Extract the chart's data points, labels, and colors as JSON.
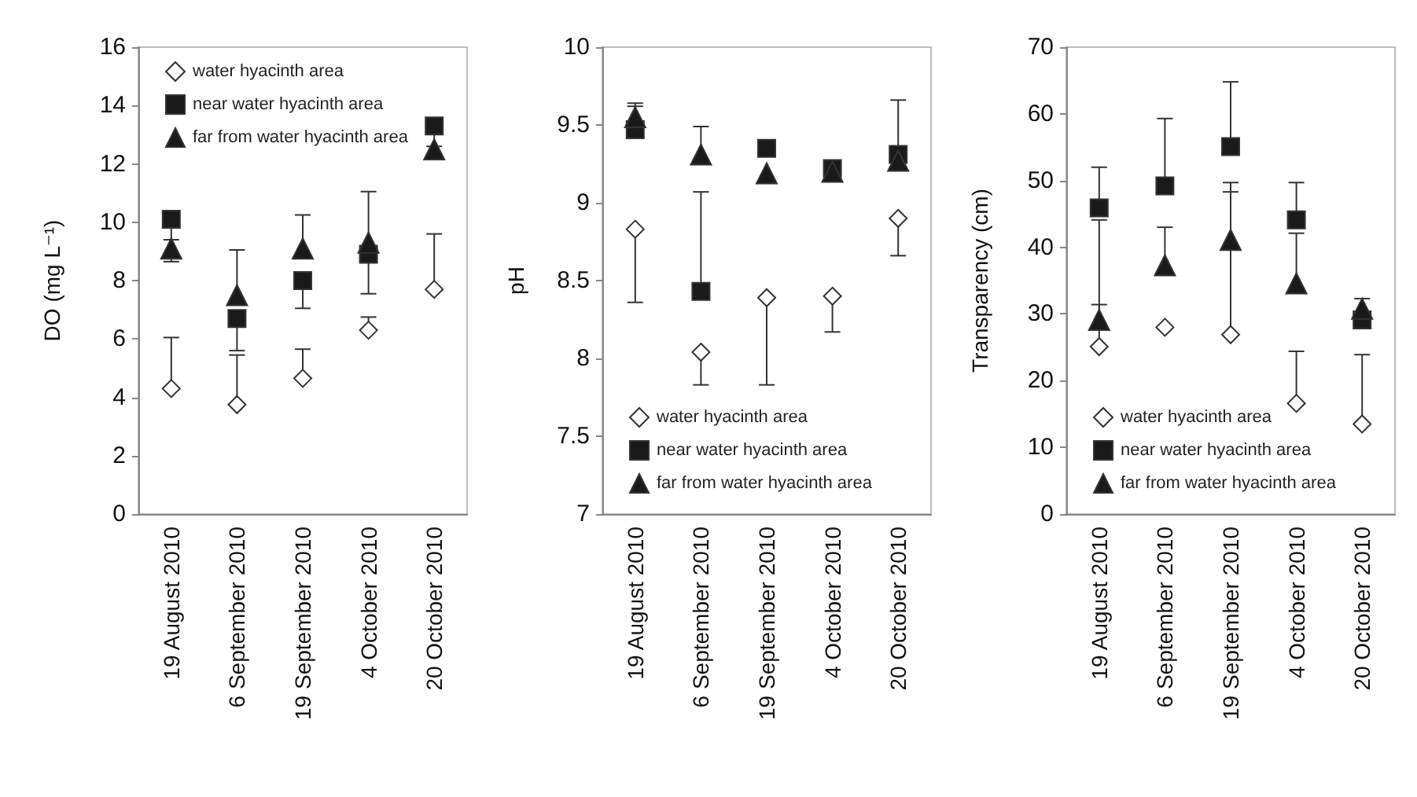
{
  "chart_data": [
    {
      "type": "scatter",
      "ylabel": "DO (mg L⁻¹)",
      "categories": [
        "19 August 2010",
        "6 September 2010",
        "19 September 2010",
        "4 October 2010",
        "20 October 2010"
      ],
      "ylim": [
        0,
        16
      ],
      "yticks": [
        0,
        2,
        4,
        6,
        8,
        10,
        12,
        14,
        16
      ],
      "grid": false,
      "legend": "top left",
      "series": [
        {
          "name": "water hyacinth area",
          "color": "#ffffff",
          "marker": "diamond",
          "values": [
            4.3,
            3.75,
            4.65,
            6.3,
            7.7
          ],
          "errors": [
            [
              4.3,
              6.05
            ],
            [
              3.75,
              5.45
            ],
            [
              4.65,
              5.65
            ],
            [
              6.3,
              6.75
            ],
            [
              7.7,
              9.6
            ]
          ]
        },
        {
          "name": "near water hyacinth area",
          "color": "#1a1a1a",
          "marker": "square",
          "values": [
            10.1,
            6.7,
            8.0,
            8.9,
            13.3
          ],
          "errors": [
            [
              9.4,
              10.1
            ],
            [
              5.6,
              6.7
            ],
            [
              7.05,
              8.0
            ],
            [
              7.55,
              8.9
            ],
            [
              12.6,
              13.3
            ]
          ]
        },
        {
          "name": "far from water hyacinth area",
          "color": "#1a1a1a",
          "marker": "triangle",
          "values": [
            9.1,
            7.5,
            9.1,
            9.3,
            12.5
          ],
          "errors": [
            [
              8.65,
              9.1
            ],
            [
              7.5,
              9.05
            ],
            [
              9.1,
              10.25
            ],
            [
              9.3,
              11.05
            ],
            null
          ]
        }
      ]
    },
    {
      "type": "scatter",
      "ylabel": "pH",
      "categories": [
        "19 August 2010",
        "6 September 2010",
        "19 September 2010",
        "4 October 2010",
        "20 October 2010"
      ],
      "ylim": [
        7,
        10
      ],
      "yticks": [
        7,
        7.5,
        8,
        8.5,
        9,
        9.5,
        10
      ],
      "grid": false,
      "legend": "bottom left",
      "series": [
        {
          "name": "water hyacinth area",
          "color": "#ffffff",
          "marker": "diamond",
          "values": [
            8.83,
            8.04,
            8.39,
            8.4,
            8.9
          ],
          "errors": [
            [
              8.36,
              8.83
            ],
            [
              7.83,
              8.04
            ],
            [
              7.83,
              8.39
            ],
            [
              8.17,
              8.4
            ],
            [
              8.66,
              8.9
            ]
          ]
        },
        {
          "name": "near water hyacinth area",
          "color": "#1a1a1a",
          "marker": "square",
          "values": [
            9.47,
            8.43,
            9.35,
            9.22,
            9.31
          ],
          "errors": [
            [
              9.47,
              9.62
            ],
            [
              8.43,
              9.07
            ],
            null,
            null,
            [
              9.31,
              9.66
            ]
          ]
        },
        {
          "name": "far from water hyacinth area",
          "color": "#1a1a1a",
          "marker": "triangle",
          "values": [
            9.55,
            9.31,
            9.19,
            9.2,
            9.27
          ],
          "errors": [
            [
              9.55,
              9.64
            ],
            [
              9.31,
              9.49
            ],
            null,
            null,
            null
          ]
        }
      ]
    },
    {
      "type": "scatter",
      "ylabel": "Transparency (cm)",
      "categories": [
        "19 August 2010",
        "6 September 2010",
        "19 September 2010",
        "4 October 2010",
        "20 October 2010"
      ],
      "ylim": [
        0,
        70
      ],
      "yticks": [
        0,
        10,
        20,
        30,
        40,
        50,
        60,
        70
      ],
      "grid": false,
      "legend": "bottom left",
      "series": [
        {
          "name": "water hyacinth area",
          "color": "#ffffff",
          "marker": "diamond",
          "values": [
            25.1,
            28.0,
            26.9,
            16.6,
            13.5
          ],
          "errors": [
            [
              25.1,
              44.1
            ],
            null,
            [
              26.9,
              48.3
            ],
            [
              16.6,
              24.4
            ],
            [
              13.5,
              23.9
            ]
          ]
        },
        {
          "name": "near water hyacinth area",
          "color": "#1a1a1a",
          "marker": "square",
          "values": [
            45.9,
            49.2,
            55.1,
            44.1,
            29.1
          ],
          "errors": [
            [
              45.9,
              52.0
            ],
            [
              49.2,
              59.3
            ],
            [
              55.1,
              64.8
            ],
            [
              44.1,
              49.7
            ],
            null
          ]
        },
        {
          "name": "far from water hyacinth area",
          "color": "#1a1a1a",
          "marker": "triangle",
          "values": [
            29.1,
            37.3,
            41.1,
            34.6,
            30.8
          ],
          "errors": [
            [
              29.1,
              31.4
            ],
            [
              37.3,
              43.0
            ],
            [
              41.1,
              49.7
            ],
            [
              34.6,
              42.1
            ],
            [
              30.8,
              32.3
            ]
          ]
        }
      ]
    }
  ]
}
